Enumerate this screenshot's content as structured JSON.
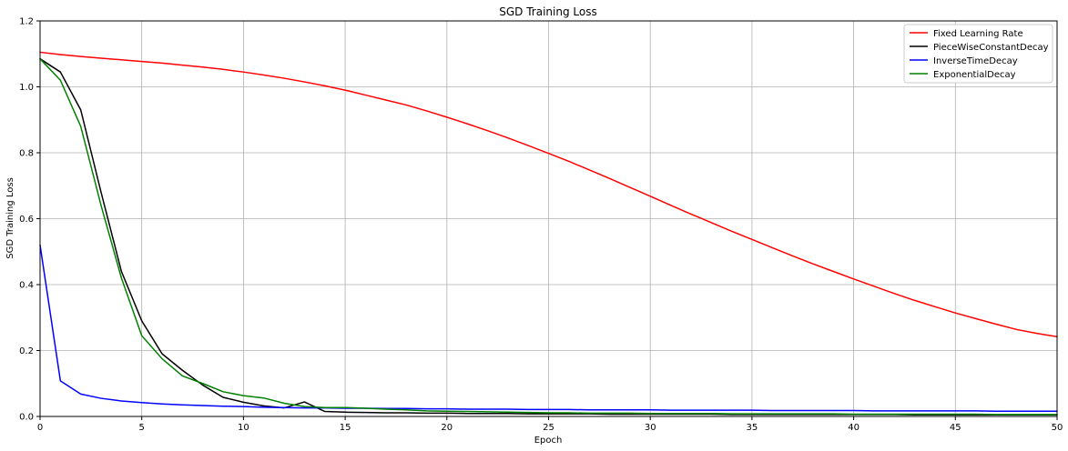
{
  "chart_data": {
    "type": "line",
    "title": "SGD Training Loss",
    "xlabel": "Epoch",
    "ylabel": "SGD Training Loss",
    "xlim": [
      0,
      50
    ],
    "ylim": [
      0,
      1.2
    ],
    "xticks": [
      0,
      5,
      10,
      15,
      20,
      25,
      30,
      35,
      40,
      45,
      50
    ],
    "yticks": [
      0.0,
      0.2,
      0.4,
      0.6,
      0.8,
      1.0,
      1.2
    ],
    "xtick_labels": [
      "0",
      "5",
      "10",
      "15",
      "20",
      "25",
      "30",
      "35",
      "40",
      "45",
      "50"
    ],
    "ytick_labels": [
      "0.0",
      "0.2",
      "0.4",
      "0.6",
      "0.8",
      "1.0",
      "1.2"
    ],
    "grid": true,
    "legend_position": "top-right",
    "x": [
      0,
      1,
      2,
      3,
      4,
      5,
      6,
      7,
      8,
      9,
      10,
      11,
      12,
      13,
      14,
      15,
      16,
      17,
      18,
      19,
      20,
      21,
      22,
      23,
      24,
      25,
      26,
      27,
      28,
      29,
      30,
      31,
      32,
      33,
      34,
      35,
      36,
      37,
      38,
      39,
      40,
      41,
      42,
      43,
      44,
      45,
      46,
      47,
      48,
      49,
      50
    ],
    "series": [
      {
        "name": "Fixed Learning Rate",
        "color": "#ff0000",
        "values": [
          1.105,
          1.098,
          1.092,
          1.087,
          1.082,
          1.077,
          1.072,
          1.066,
          1.06,
          1.053,
          1.045,
          1.036,
          1.026,
          1.015,
          1.003,
          0.99,
          0.975,
          0.96,
          0.945,
          0.927,
          0.908,
          0.888,
          0.867,
          0.845,
          0.822,
          0.798,
          0.774,
          0.748,
          0.722,
          0.695,
          0.668,
          0.641,
          0.614,
          0.588,
          0.562,
          0.537,
          0.512,
          0.487,
          0.463,
          0.44,
          0.417,
          0.395,
          0.373,
          0.352,
          0.333,
          0.314,
          0.297,
          0.28,
          0.264,
          0.252,
          0.242
        ]
      },
      {
        "name": "PieceWiseConstantDecay",
        "color": "#000000",
        "values": [
          1.085,
          1.045,
          0.93,
          0.68,
          0.44,
          0.29,
          0.19,
          0.14,
          0.095,
          0.058,
          0.043,
          0.032,
          0.026,
          0.044,
          0.015,
          0.013,
          0.012,
          0.011,
          0.011,
          0.01,
          0.01,
          0.009,
          0.009,
          0.009,
          0.008,
          0.008,
          0.008,
          0.008,
          0.007,
          0.007,
          0.007,
          0.007,
          0.007,
          0.007,
          0.006,
          0.006,
          0.006,
          0.006,
          0.006,
          0.006,
          0.006,
          0.006,
          0.006,
          0.005,
          0.005,
          0.005,
          0.005,
          0.005,
          0.005,
          0.005,
          0.005
        ]
      },
      {
        "name": "InverseTimeDecay",
        "color": "#0000ff",
        "values": [
          0.52,
          0.108,
          0.068,
          0.055,
          0.047,
          0.042,
          0.038,
          0.035,
          0.033,
          0.031,
          0.03,
          0.028,
          0.027,
          0.026,
          0.026,
          0.025,
          0.025,
          0.024,
          0.024,
          0.023,
          0.023,
          0.022,
          0.022,
          0.022,
          0.021,
          0.021,
          0.021,
          0.02,
          0.02,
          0.02,
          0.02,
          0.019,
          0.019,
          0.019,
          0.019,
          0.019,
          0.018,
          0.018,
          0.018,
          0.018,
          0.018,
          0.017,
          0.017,
          0.017,
          0.017,
          0.017,
          0.017,
          0.016,
          0.016,
          0.016,
          0.016
        ]
      },
      {
        "name": "ExponentialDecay",
        "color": "#008000",
        "values": [
          1.085,
          1.02,
          0.88,
          0.64,
          0.42,
          0.245,
          0.175,
          0.123,
          0.1,
          0.075,
          0.063,
          0.056,
          0.04,
          0.03,
          0.027,
          0.027,
          0.025,
          0.022,
          0.02,
          0.017,
          0.016,
          0.015,
          0.014,
          0.013,
          0.012,
          0.011,
          0.011,
          0.01,
          0.01,
          0.01,
          0.009,
          0.009,
          0.009,
          0.009,
          0.008,
          0.008,
          0.008,
          0.008,
          0.008,
          0.008,
          0.007,
          0.007,
          0.007,
          0.007,
          0.007,
          0.007,
          0.007,
          0.006,
          0.006,
          0.006,
          0.006
        ]
      }
    ]
  }
}
